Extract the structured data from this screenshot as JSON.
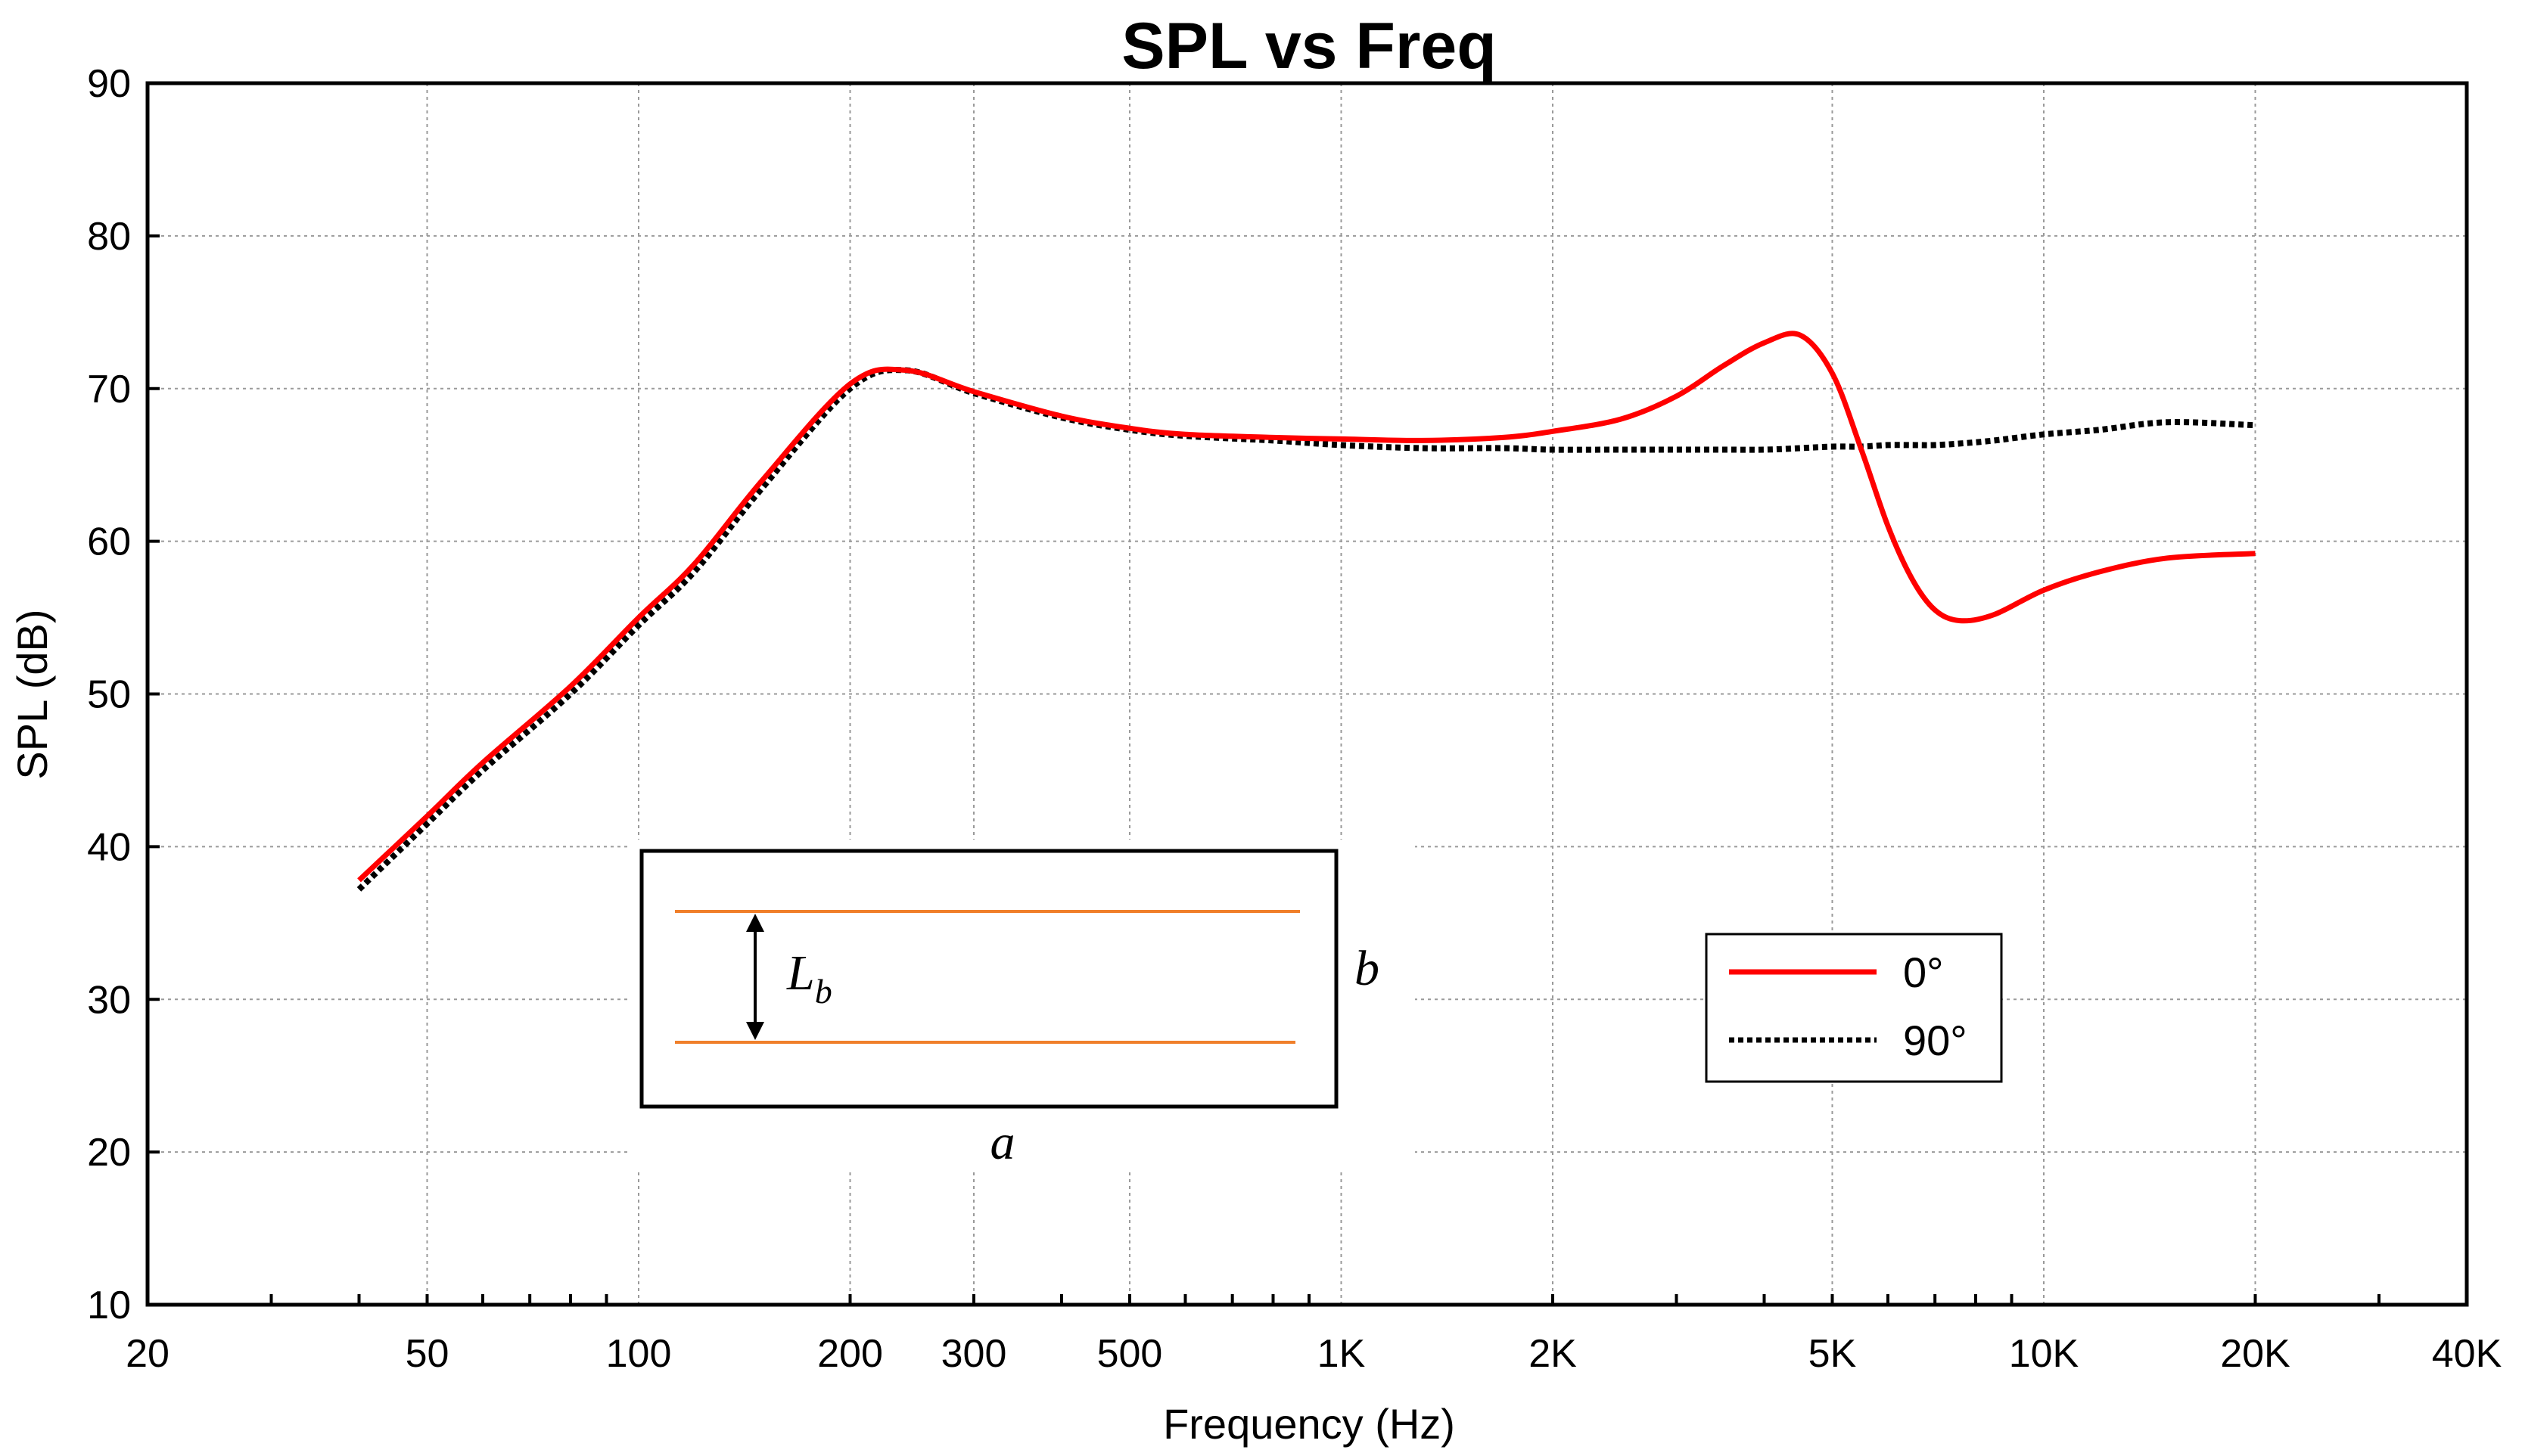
{
  "chart_data": {
    "type": "line",
    "title": "SPL vs Freq",
    "xlabel": "Frequency (Hz)",
    "ylabel": "SPL (dB)",
    "xscale": "log",
    "xlim": [
      20,
      40000
    ],
    "ylim": [
      10,
      90
    ],
    "grid": true,
    "xticks": [
      {
        "value": 20,
        "label": "20"
      },
      {
        "value": 50,
        "label": "50"
      },
      {
        "value": 100,
        "label": "100"
      },
      {
        "value": 200,
        "label": "200"
      },
      {
        "value": 300,
        "label": "300"
      },
      {
        "value": 500,
        "label": "500"
      },
      {
        "value": 1000,
        "label": "1K"
      },
      {
        "value": 2000,
        "label": "2K"
      },
      {
        "value": 5000,
        "label": "5K"
      },
      {
        "value": 10000,
        "label": "10K"
      },
      {
        "value": 20000,
        "label": "20K"
      },
      {
        "value": 40000,
        "label": "40K"
      }
    ],
    "yticks": [
      {
        "value": 10,
        "label": "10"
      },
      {
        "value": 20,
        "label": "20"
      },
      {
        "value": 30,
        "label": "30"
      },
      {
        "value": 40,
        "label": "40"
      },
      {
        "value": 50,
        "label": "50"
      },
      {
        "value": 60,
        "label": "60"
      },
      {
        "value": 70,
        "label": "70"
      },
      {
        "value": 80,
        "label": "80"
      },
      {
        "value": 90,
        "label": "90"
      }
    ],
    "legend_location": "lower-right",
    "series": [
      {
        "name": "0°",
        "color": "#ff0000",
        "style": "solid",
        "x": [
          40,
          50,
          60,
          80,
          100,
          120,
          150,
          200,
          240,
          300,
          400,
          500,
          600,
          800,
          1000,
          1300,
          1700,
          2000,
          2500,
          3000,
          3500,
          4000,
          4500,
          5000,
          5500,
          6000,
          6500,
          7000,
          7600,
          8500,
          10000,
          12000,
          15000,
          20000
        ],
        "y": [
          37.8,
          42.0,
          45.5,
          50.5,
          55.0,
          58.5,
          64.0,
          70.3,
          71.2,
          69.8,
          68.2,
          67.4,
          67.0,
          66.8,
          66.7,
          66.6,
          66.8,
          67.2,
          68.0,
          69.5,
          71.5,
          73.0,
          73.5,
          71.0,
          66.0,
          61.0,
          57.5,
          55.5,
          54.8,
          55.2,
          56.8,
          58.0,
          58.9,
          59.2
        ]
      },
      {
        "name": "90°",
        "color": "#000000",
        "style": "dotted",
        "x": [
          40,
          50,
          60,
          80,
          100,
          120,
          150,
          200,
          240,
          300,
          400,
          500,
          600,
          800,
          1000,
          1300,
          1700,
          2000,
          2500,
          3000,
          3500,
          4000,
          4500,
          5000,
          5500,
          6000,
          6500,
          7000,
          7600,
          8500,
          10000,
          12000,
          15000,
          20000
        ],
        "y": [
          37.2,
          41.5,
          45.0,
          50.0,
          54.5,
          58.0,
          63.5,
          70.0,
          71.2,
          69.7,
          68.1,
          67.3,
          66.9,
          66.6,
          66.3,
          66.1,
          66.1,
          66.0,
          66.0,
          66.0,
          66.0,
          66.0,
          66.1,
          66.2,
          66.2,
          66.3,
          66.3,
          66.3,
          66.4,
          66.6,
          67.0,
          67.3,
          67.8,
          67.6
        ]
      }
    ]
  },
  "inset": {
    "label_lb": "L",
    "label_lb_sub": "b",
    "label_b": "b",
    "label_a": "a",
    "strip_color": "#f07f2a"
  },
  "legend": {
    "entries": [
      "0°",
      "90°"
    ]
  }
}
